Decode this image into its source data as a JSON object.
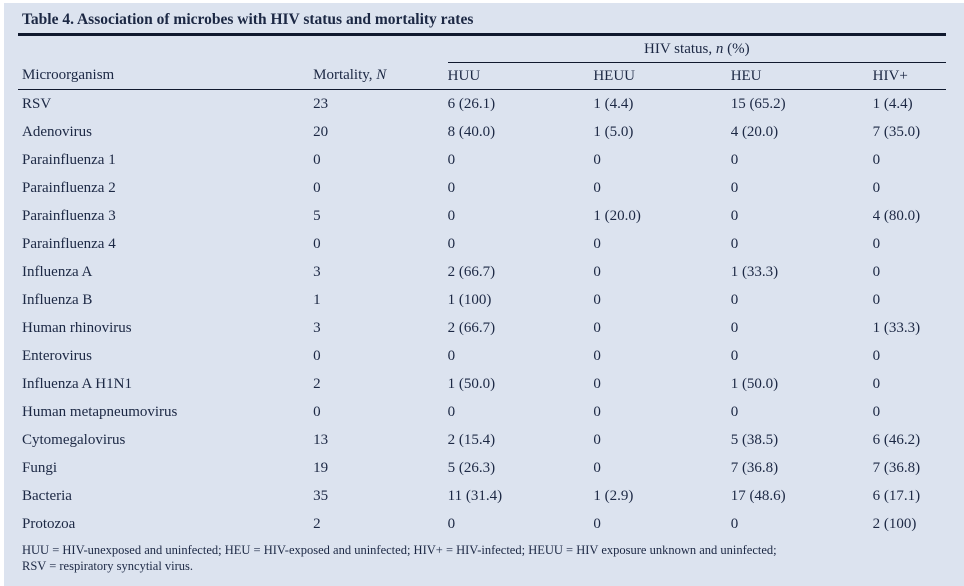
{
  "table": {
    "title": "Table 4. Association of microbes with HIV status and mortality rates",
    "group_header": {
      "prefix": "HIV status, ",
      "italic": "n",
      "suffix": " (%)"
    },
    "columns": {
      "microorganism": "Microorganism",
      "mortality_prefix": "Mortality, ",
      "mortality_italic": "N",
      "huu": "HUU",
      "heuu": "HEUU",
      "heu": "HEU",
      "hiv_positive": "HIV+"
    },
    "rows": [
      [
        "RSV",
        "23",
        "6 (26.1)",
        "1 (4.4)",
        "15 (65.2)",
        "1 (4.4)"
      ],
      [
        "Adenovirus",
        "20",
        "8 (40.0)",
        "1 (5.0)",
        "4 (20.0)",
        "7 (35.0)"
      ],
      [
        "Parainfluenza 1",
        "0",
        "0",
        "0",
        "0",
        "0"
      ],
      [
        "Parainfluenza 2",
        "0",
        "0",
        "0",
        "0",
        "0"
      ],
      [
        "Parainfluenza 3",
        "5",
        "0",
        "1 (20.0)",
        "0",
        "4 (80.0)"
      ],
      [
        "Parainfluenza 4",
        "0",
        "0",
        "0",
        "0",
        "0"
      ],
      [
        "Influenza A",
        "3",
        "2 (66.7)",
        "0",
        "1 (33.3)",
        "0"
      ],
      [
        "Influenza B",
        "1",
        "1 (100)",
        "0",
        "0",
        "0"
      ],
      [
        "Human rhinovirus",
        "3",
        "2 (66.7)",
        "0",
        "0",
        "1 (33.3)"
      ],
      [
        "Enterovirus",
        "0",
        "0",
        "0",
        "0",
        "0"
      ],
      [
        "Influenza A H1N1",
        "2",
        "1 (50.0)",
        "0",
        "1 (50.0)",
        "0"
      ],
      [
        "Human metapneumovirus",
        "0",
        "0",
        "0",
        "0",
        "0"
      ],
      [
        "Cytomegalovirus",
        "13",
        "2 (15.4)",
        "0",
        "5 (38.5)",
        "6 (46.2)"
      ],
      [
        "Fungi",
        "19",
        "5 (26.3)",
        "0",
        "7 (36.8)",
        "7 (36.8)"
      ],
      [
        "Bacteria",
        "35",
        "11 (31.4)",
        "1 (2.9)",
        "17 (48.6)",
        "6 (17.1)"
      ],
      [
        "Protozoa",
        "2",
        "0",
        "0",
        "0",
        "2 (100)"
      ]
    ],
    "footnote": [
      "HUU = HIV-unexposed and uninfected; HEU = HIV-exposed and uninfected; HIV+ = HIV-infected; HEUU = HIV exposure unknown and uninfected;",
      "RSV = respiratory syncytial virus."
    ],
    "colors": {
      "panel_background": "#dce3ef",
      "text": "#1c2844",
      "rule": "#10192e"
    }
  }
}
